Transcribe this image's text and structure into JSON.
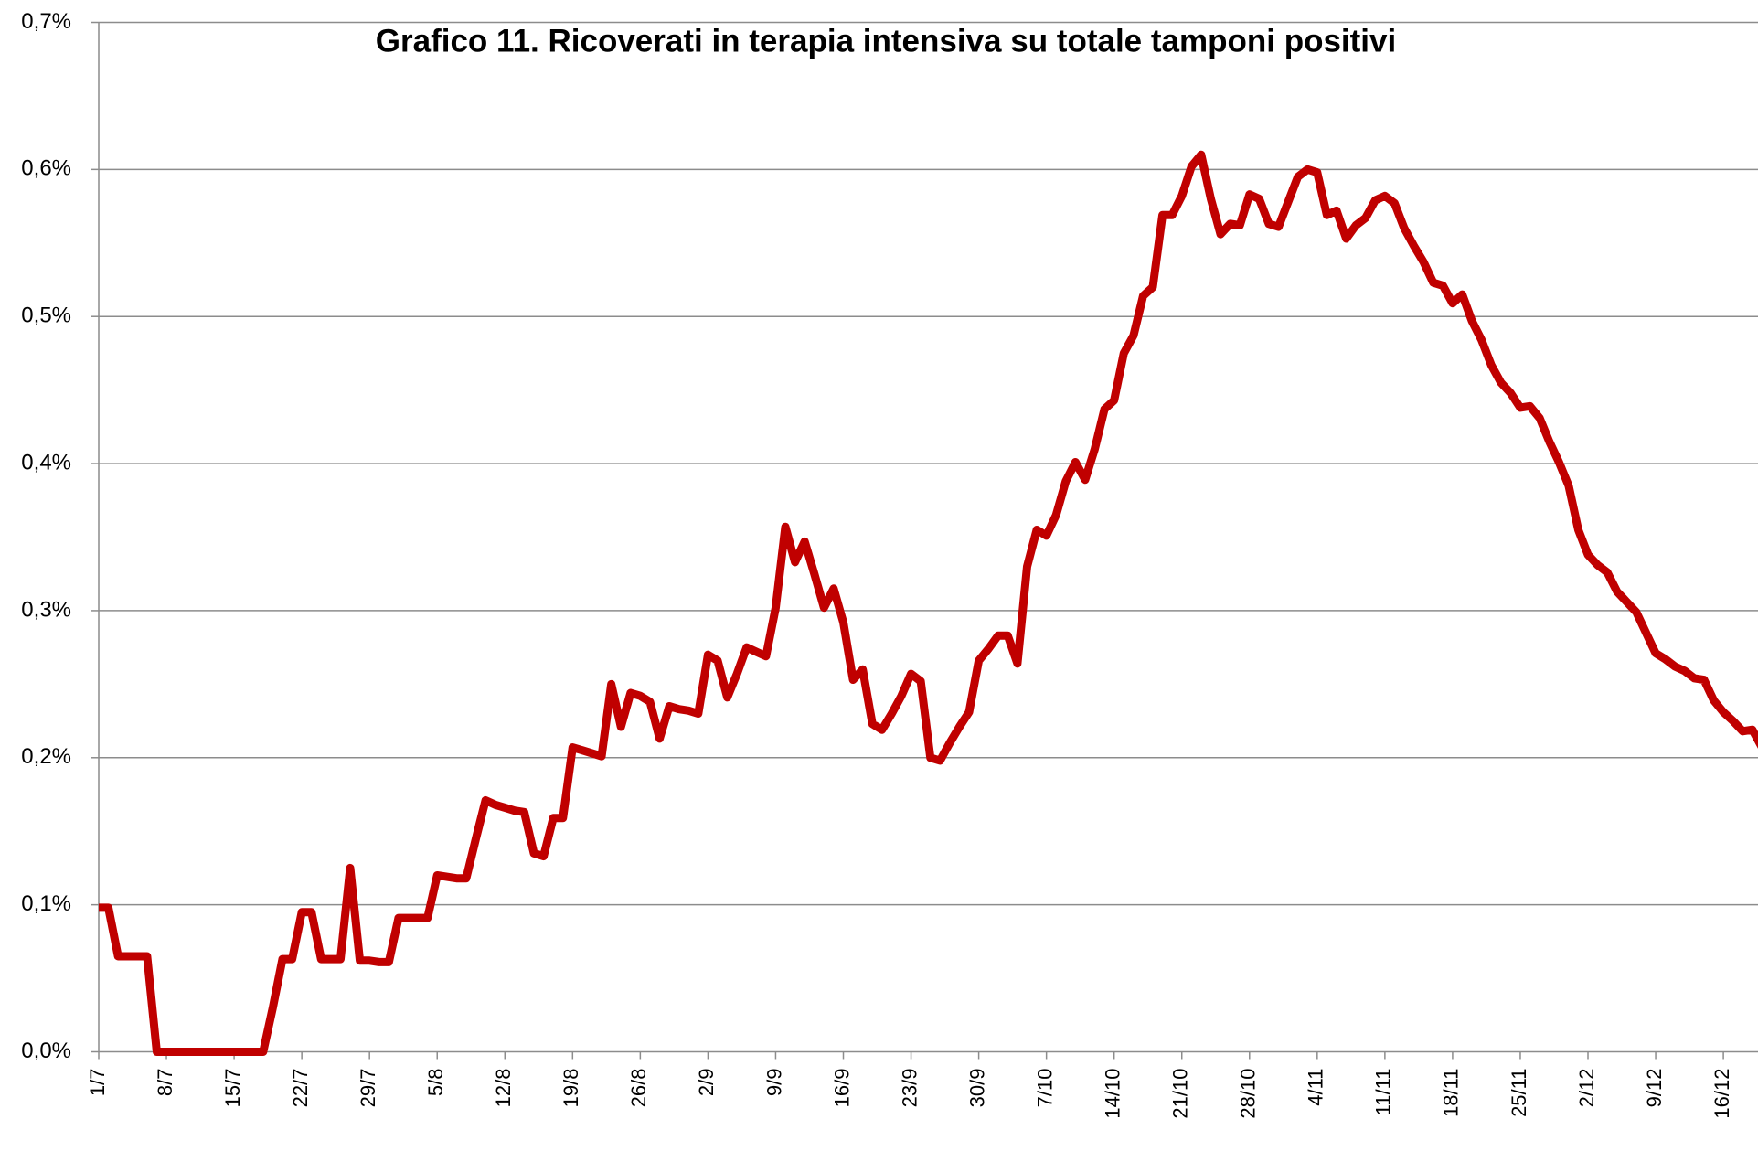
{
  "chart_data": {
    "type": "line",
    "title": "Grafico 11. Ricoverati in terapia intensiva su totale tamponi positivi",
    "categories": [
      "1/7",
      null,
      null,
      null,
      null,
      null,
      null,
      "8/7",
      null,
      null,
      null,
      null,
      null,
      null,
      "15/7",
      null,
      null,
      null,
      null,
      null,
      null,
      "22/7",
      null,
      null,
      null,
      null,
      null,
      null,
      "29/7",
      null,
      null,
      null,
      null,
      null,
      null,
      "5/8",
      null,
      null,
      null,
      null,
      null,
      null,
      "12/8",
      null,
      null,
      null,
      null,
      null,
      null,
      "19/8",
      null,
      null,
      null,
      null,
      null,
      null,
      "26/8",
      null,
      null,
      null,
      null,
      null,
      null,
      "2/9",
      null,
      null,
      null,
      null,
      null,
      null,
      "9/9",
      null,
      null,
      null,
      null,
      null,
      null,
      "16/9",
      null,
      null,
      null,
      null,
      null,
      null,
      "23/9",
      null,
      null,
      null,
      null,
      null,
      null,
      "30/9",
      null,
      null,
      null,
      null,
      null,
      null,
      "7/10",
      null,
      null,
      null,
      null,
      null,
      null,
      "14/10",
      null,
      null,
      null,
      null,
      null,
      null,
      "21/10",
      null,
      null,
      null,
      null,
      null,
      null,
      "28/10",
      null,
      null,
      null,
      null,
      null,
      null,
      "4/11",
      null,
      null,
      null,
      null,
      null,
      null,
      "11/11",
      null,
      null,
      null,
      null,
      null,
      null,
      "18/11",
      null,
      null,
      null,
      null,
      null,
      null,
      "25/11",
      null,
      null,
      null,
      null,
      null,
      null,
      "2/12",
      null,
      null,
      null,
      null,
      null,
      null,
      "9/12",
      null,
      null,
      null,
      null,
      null,
      null,
      "16/12",
      null,
      null,
      null,
      null
    ],
    "series": [
      {
        "color": "#c00000",
        "values": [
          0.098,
          0.098,
          0.065,
          0.065,
          0.065,
          0.065,
          0,
          0,
          0,
          0,
          0,
          0,
          0,
          0,
          0,
          0,
          0,
          0,
          0.03,
          0.063,
          0.063,
          0.095,
          0.095,
          0.063,
          0.063,
          0.063,
          0.125,
          0.062,
          0.062,
          0.061,
          0.061,
          0.091,
          0.091,
          0.091,
          0.091,
          0.12,
          0.119,
          0.118,
          0.118,
          0.145,
          0.171,
          0.168,
          0.166,
          0.164,
          0.163,
          0.135,
          0.133,
          0.159,
          0.159,
          0.207,
          0.205,
          0.203,
          0.201,
          0.25,
          0.221,
          0.244,
          0.242,
          0.238,
          0.213,
          0.235,
          0.233,
          0.232,
          0.23,
          0.27,
          0.266,
          0.241,
          0.257,
          0.275,
          0.272,
          0.269,
          0.302,
          0.357,
          0.333,
          0.347,
          0.325,
          0.302,
          0.315,
          0.292,
          0.253,
          0.26,
          0.223,
          0.219,
          0.23,
          0.242,
          0.257,
          0.252,
          0.2,
          0.198,
          0.21,
          0.221,
          0.231,
          0.266,
          0.274,
          0.283,
          0.283,
          0.264,
          0.33,
          0.355,
          0.351,
          0.365,
          0.388,
          0.401,
          0.389,
          0.41,
          0.437,
          0.443,
          0.475,
          0.487,
          0.514,
          0.52,
          0.569,
          0.569,
          0.582,
          0.602,
          0.61,
          0.58,
          0.556,
          0.563,
          0.562,
          0.583,
          0.58,
          0.563,
          0.561,
          0.578,
          0.595,
          0.6,
          0.598,
          0.569,
          0.572,
          0.553,
          0.562,
          0.567,
          0.579,
          0.582,
          0.577,
          0.56,
          0.548,
          0.537,
          0.523,
          0.521,
          0.509,
          0.515,
          0.497,
          0.484,
          0.467,
          0.455,
          0.448,
          0.438,
          0.439,
          0.431,
          0.415,
          0.401,
          0.385,
          0.355,
          0.338,
          0.331,
          0.326,
          0.313,
          0.306,
          0.299,
          0.285,
          0.271,
          0.267,
          0.262,
          0.259,
          0.254,
          0.253,
          0.239,
          0.231,
          0.225,
          0.218,
          0.219,
          0.207
        ]
      }
    ],
    "ylim": [
      0,
      0.7
    ],
    "yticks": [
      {
        "value": 0,
        "label": "0,0%"
      },
      {
        "value": 0.1,
        "label": "0,1%"
      },
      {
        "value": 0.2,
        "label": "0,2%"
      },
      {
        "value": 0.3,
        "label": "0,3%"
      },
      {
        "value": 0.4,
        "label": "0,4%"
      },
      {
        "value": 0.5,
        "label": "0,5%"
      },
      {
        "value": 0.6,
        "label": "0,6%"
      },
      {
        "value": 0.7,
        "label": "0,7%"
      }
    ],
    "grid": true
  }
}
